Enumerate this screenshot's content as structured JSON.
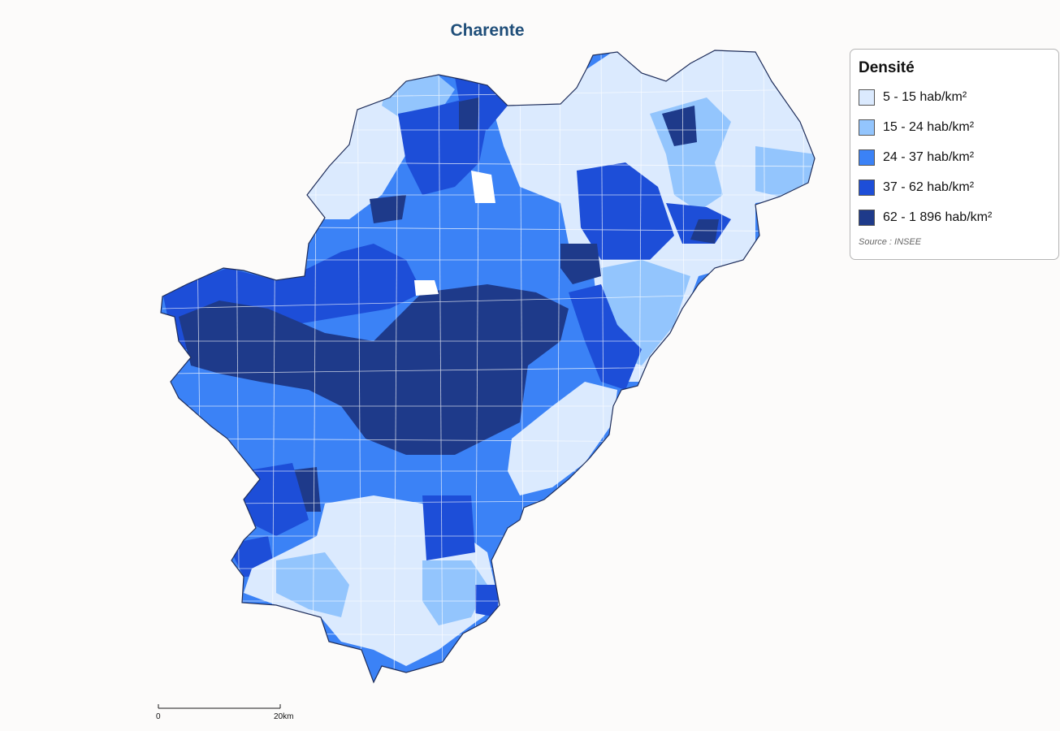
{
  "map": {
    "title": "Charente",
    "colors": {
      "c1": "#dbeafe",
      "c2": "#93c5fd",
      "c3": "#3b82f6",
      "c4": "#1d4ed8",
      "c5": "#1e3a8a",
      "boundary": "#1e2d5a",
      "inner_border": "#ffffff"
    }
  },
  "legend": {
    "title": "Densité",
    "classes": [
      {
        "label": "5 - 15 hab/km²",
        "color": "#dbeafe"
      },
      {
        "label": "15 - 24 hab/km²",
        "color": "#93c5fd"
      },
      {
        "label": "24 - 37 hab/km²",
        "color": "#3b82f6"
      },
      {
        "label": "37 - 62 hab/km²",
        "color": "#1d4ed8"
      },
      {
        "label": "62 - 1 896 hab/km²",
        "color": "#1e3a8a"
      }
    ],
    "source": "Source : INSEE"
  },
  "scale": {
    "start_label": "0",
    "end_label": "20km"
  }
}
